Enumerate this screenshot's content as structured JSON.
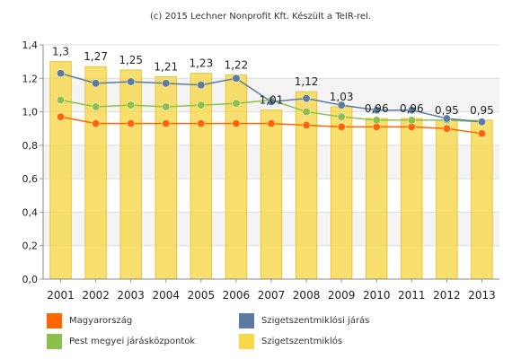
{
  "credit": "(c) 2015 Lechner Nonprofit Kft. Készült a TeIR-rel.",
  "chart_data": {
    "type": "bar",
    "categories": [
      "2001",
      "2002",
      "2003",
      "2004",
      "2005",
      "2006",
      "2007",
      "2008",
      "2009",
      "2010",
      "2011",
      "2012",
      "2013"
    ],
    "ylim": [
      0,
      1.4
    ],
    "yticks": [
      "0,0",
      "0,2",
      "0,4",
      "0,6",
      "0,8",
      "1,0",
      "1,2",
      "1,4"
    ],
    "ytick_values": [
      0,
      0.2,
      0.4,
      0.6,
      0.8,
      1.0,
      1.2,
      1.4
    ],
    "grid": true,
    "legend_position": "bottom",
    "series": [
      {
        "name": "Szigetszentmiklós",
        "kind": "bar",
        "color": "#f7d84a",
        "values": [
          1.3,
          1.27,
          1.25,
          1.21,
          1.23,
          1.22,
          1.01,
          1.12,
          1.03,
          0.96,
          0.96,
          0.95,
          0.95
        ],
        "labels": [
          "1,3",
          "1,27",
          "1,25",
          "1,21",
          "1,23",
          "1,22",
          "1,01",
          "1,12",
          "1,03",
          "0,96",
          "0,96",
          "0,95",
          "0,95"
        ]
      },
      {
        "name": "Szigetszentmiklósi járás",
        "kind": "line",
        "color": "#5b7ba0",
        "values": [
          1.23,
          1.17,
          1.18,
          1.17,
          1.16,
          1.2,
          1.06,
          1.08,
          1.04,
          1.01,
          1.01,
          0.96,
          0.94
        ]
      },
      {
        "name": "Pest megyei járásközpontok",
        "kind": "line",
        "color": "#8dc04a",
        "values": [
          1.07,
          1.03,
          1.04,
          1.03,
          1.04,
          1.05,
          1.07,
          1.0,
          0.97,
          0.95,
          0.95,
          0.95,
          0.94
        ]
      },
      {
        "name": "Magyarország",
        "kind": "line",
        "color": "#ff6600",
        "values": [
          0.97,
          0.93,
          0.93,
          0.93,
          0.93,
          0.93,
          0.93,
          0.92,
          0.91,
          0.91,
          0.91,
          0.9,
          0.87
        ]
      }
    ]
  },
  "legend": [
    {
      "label": "Magyarország",
      "color": "#ff6600"
    },
    {
      "label": "Szigetszentmiklósi járás",
      "color": "#5b7ba0"
    },
    {
      "label": "Pest megyei járásközpontok",
      "color": "#8dc04a"
    },
    {
      "label": "Szigetszentmiklós",
      "color": "#f7d84a"
    }
  ]
}
